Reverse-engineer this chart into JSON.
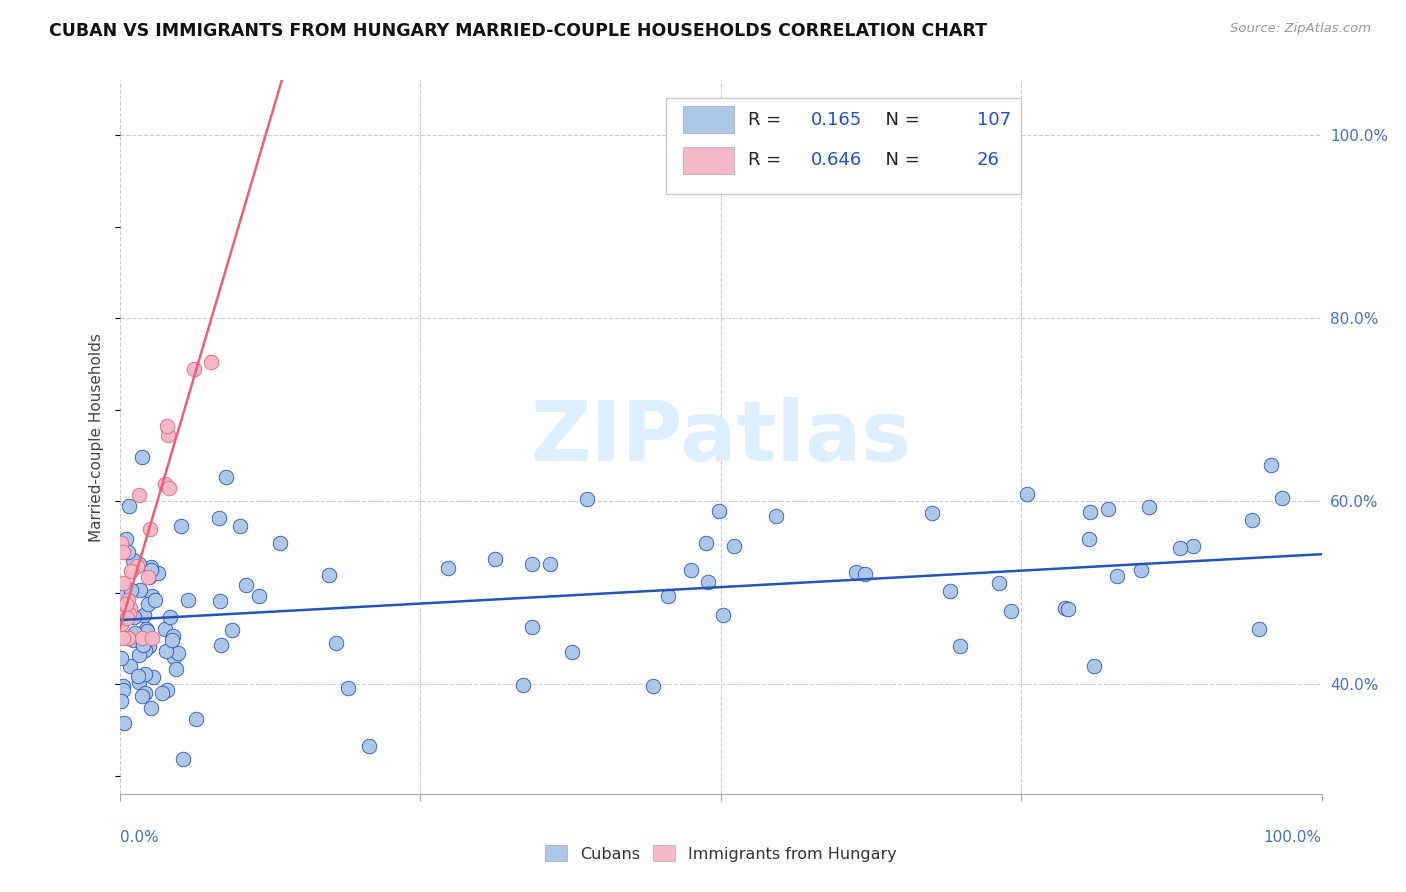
{
  "title": "CUBAN VS IMMIGRANTS FROM HUNGARY MARRIED-COUPLE HOUSEHOLDS CORRELATION CHART",
  "source": "Source: ZipAtlas.com",
  "ylabel": "Married-couple Households",
  "legend_label1": "Cubans",
  "legend_label2": "Immigrants from Hungary",
  "R1": "0.165",
  "N1": "107",
  "R2": "0.646",
  "N2": "26",
  "color_blue": "#aec6e8",
  "color_pink": "#f4b8c8",
  "line_blue": "#2255bb",
  "line_pink": "#e8607a",
  "watermark_color": "#ddeeff",
  "xlim": [
    0.0,
    1.0
  ],
  "ylim": [
    0.28,
    1.06
  ],
  "blue_line_x0": 0.0,
  "blue_line_x1": 1.0,
  "blue_line_y0": 0.47,
  "blue_line_y1": 0.542,
  "pink_line_x0": 0.0,
  "pink_line_x1": 0.135,
  "pink_line_y0": 0.46,
  "pink_line_y1": 1.06
}
